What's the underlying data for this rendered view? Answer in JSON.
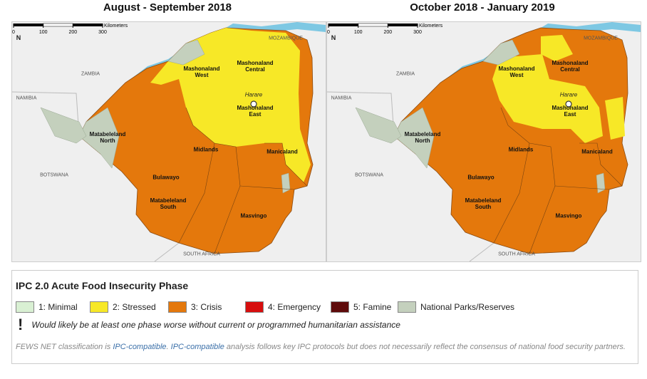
{
  "maps": [
    {
      "title": "August - September 2018",
      "labels": [
        "N",
        "ZAMBIA",
        "MOZAMBIQUE",
        "NAMIBIA",
        "BOTSWANA",
        "SOUTH AFRICA",
        "Mashonaland West",
        "Mashonaland Central",
        "Harare",
        "Mashonaland East",
        "Matabeleland North",
        "Midlands",
        "Manicaland",
        "Bulawayo",
        "Matabeleland South",
        "Masvingo"
      ],
      "scale": {
        "unit": "Kilometers",
        "ticks": [
          0,
          100,
          200,
          300
        ]
      }
    },
    {
      "title": "October 2018 - January 2019",
      "labels": [
        "N",
        "ZAMBIA",
        "MOZAMBIQUE",
        "NAMIBIA",
        "BOTSWANA",
        "SOUTH AFRICA",
        "Mashonaland West",
        "Mashonaland Central",
        "Harare",
        "Mashonaland East",
        "Matabeleland North",
        "Midlands",
        "Manicaland",
        "Bulawayo",
        "Matabeleland South",
        "Masvingo"
      ],
      "scale": {
        "unit": "Kilometers",
        "ticks": [
          0,
          100,
          200,
          300
        ]
      }
    }
  ],
  "legend": {
    "title": "IPC 2.0 Acute Food Insecurity Phase",
    "items": [
      {
        "label": "1: Minimal",
        "color": "#d9f0d3"
      },
      {
        "label": "2: Stressed",
        "color": "#f7e827"
      },
      {
        "label": "3: Crisis",
        "color": "#e4780c"
      },
      {
        "label": "4: Emergency",
        "color": "#d70e0e"
      },
      {
        "label": "5: Famine",
        "color": "#5e0a0a"
      },
      {
        "label": "National Parks/Reserves",
        "color": "#c4d0bd"
      }
    ],
    "note_symbol": "!",
    "note": "Would likely be at least one phase worse without current or programmed humanitarian assistance"
  },
  "footer": {
    "parts": [
      "FEWS NET classification is ",
      "IPC-compatible",
      ". ",
      "IPC-compatible",
      " analysis follows key IPC protocols but does not necessarily reflect the consensus of national food security partners."
    ]
  }
}
